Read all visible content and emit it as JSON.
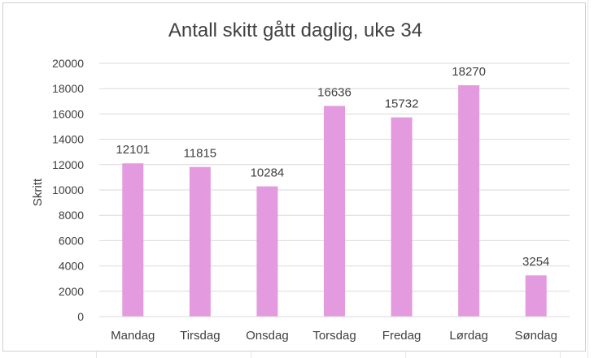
{
  "chart_data": {
    "type": "bar",
    "title": "Antall skitt gått daglig, uke 34",
    "xlabel": "",
    "ylabel": "Skritt",
    "categories": [
      "Mandag",
      "Tirsdag",
      "Onsdag",
      "Torsdag",
      "Fredag",
      "Lørdag",
      "Søndag"
    ],
    "values": [
      12101,
      11815,
      10284,
      16636,
      15732,
      18270,
      3254
    ],
    "data_labels": [
      "12101",
      "11815",
      "10284",
      "16636",
      "15732",
      "18270",
      "3254"
    ],
    "ylim": [
      0,
      20000
    ],
    "yticks": [
      0,
      2000,
      4000,
      6000,
      8000,
      10000,
      12000,
      14000,
      16000,
      18000,
      20000
    ],
    "ytick_labels": [
      "0",
      "2000",
      "4000",
      "6000",
      "8000",
      "10000",
      "12000",
      "14000",
      "16000",
      "18000",
      "20000"
    ],
    "grid": true,
    "legend": "none",
    "colors": {
      "bar": "#e49ade",
      "gridline": "#d9d9d9",
      "text": "#404040"
    }
  }
}
